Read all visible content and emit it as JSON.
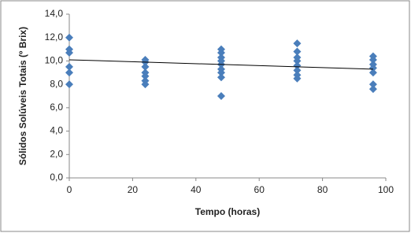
{
  "chart_data": {
    "type": "scatter",
    "x_label": "Tempo (horas)",
    "y_label": "Sólidos Solúveis Totais (º Brix)",
    "xlim": [
      0,
      100
    ],
    "xticks": [
      0,
      20,
      40,
      60,
      80,
      100
    ],
    "ylim": [
      0,
      14
    ],
    "yticks": [
      {
        "value": 0,
        "label": "0,0"
      },
      {
        "value": 2,
        "label": "2,0"
      },
      {
        "value": 4,
        "label": "4,0"
      },
      {
        "value": 6,
        "label": "6,0"
      },
      {
        "value": 8,
        "label": "8,0"
      },
      {
        "value": 10,
        "label": "10,0"
      },
      {
        "value": 12,
        "label": "12,0"
      },
      {
        "value": 14,
        "label": "14,0"
      }
    ],
    "grid": false,
    "series": [
      {
        "color": "#4a7ebb",
        "x": [
          0,
          0,
          0,
          0,
          0,
          0,
          24,
          24,
          24,
          24,
          24,
          24,
          24,
          48,
          48,
          48,
          48,
          48,
          48,
          48,
          48,
          48,
          72,
          72,
          72,
          72,
          72,
          72,
          72,
          72,
          96,
          96,
          96,
          96,
          96,
          96,
          96
        ],
        "values": [
          12.0,
          11.0,
          10.7,
          9.5,
          9.0,
          8.0,
          10.1,
          9.9,
          9.5,
          9.0,
          8.7,
          8.3,
          8.0,
          11.0,
          10.7,
          10.3,
          10.0,
          9.7,
          9.3,
          9.0,
          8.6,
          7.0,
          11.5,
          10.8,
          10.3,
          10.0,
          9.6,
          9.2,
          8.8,
          8.5,
          10.4,
          10.1,
          9.7,
          9.4,
          9.0,
          8.0,
          7.6
        ]
      }
    ],
    "trendline": {
      "color": "#000000",
      "x": [
        0,
        96
      ],
      "y": [
        10.1,
        9.3
      ]
    }
  }
}
